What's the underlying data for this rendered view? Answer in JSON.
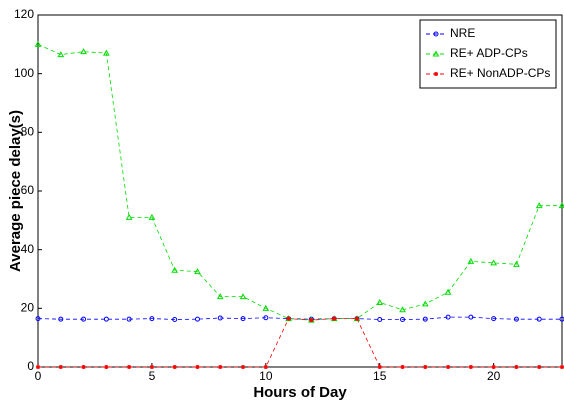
{
  "chart_data": {
    "type": "line",
    "x": [
      0,
      1,
      2,
      3,
      4,
      5,
      6,
      7,
      8,
      9,
      10,
      11,
      12,
      13,
      14,
      15,
      16,
      17,
      18,
      19,
      20,
      21,
      22,
      23
    ],
    "xlabel": "Hours of Day",
    "ylabel": "Average piece delay(s)",
    "xlim": [
      0,
      23
    ],
    "ylim": [
      0,
      120
    ],
    "xticks": [
      0,
      5,
      10,
      15,
      20
    ],
    "yticks": [
      0,
      20,
      40,
      60,
      80,
      100,
      120
    ],
    "legend": "upper right",
    "series": [
      {
        "name": "NRE",
        "color": "#0000ff",
        "marker": "circle",
        "values": [
          16.5,
          16.3,
          16.3,
          16.3,
          16.3,
          16.5,
          16.2,
          16.3,
          16.7,
          16.5,
          16.8,
          16.5,
          16.3,
          16.5,
          16.5,
          16.2,
          16.2,
          16.3,
          17,
          17,
          16.5,
          16.3,
          16.3,
          16.3
        ]
      },
      {
        "name": "RE+ ADP-CPs",
        "color": "#00dd00",
        "marker": "triangle",
        "values": [
          110,
          106.5,
          107.5,
          107,
          51,
          51,
          33,
          32.5,
          24,
          24,
          20,
          16.5,
          16,
          16.5,
          16.5,
          22,
          19.5,
          21.5,
          25.5,
          36,
          35.5,
          35,
          55,
          55
        ]
      },
      {
        "name": "RE+ NonADP-CPs",
        "color": "#ff0000",
        "marker": "star",
        "values": [
          0,
          0,
          0,
          0,
          0,
          0,
          0,
          0,
          0,
          0,
          0,
          16.5,
          16,
          16.5,
          16.5,
          0,
          0,
          0,
          0,
          0,
          0,
          0,
          0,
          0
        ]
      }
    ]
  }
}
